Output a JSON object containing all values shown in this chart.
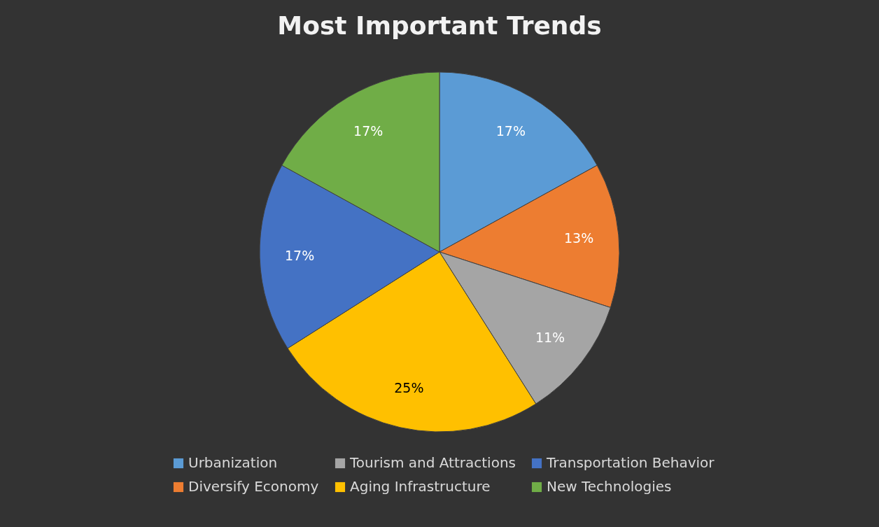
{
  "chart_data": {
    "type": "pie",
    "title": "Most Important Trends",
    "categories": [
      "Urbanization",
      "Diversify Economy",
      "Tourism and Attractions",
      "Aging Infrastructure",
      "Transportation Behavior",
      "New Technologies"
    ],
    "values": [
      17,
      13,
      11,
      25,
      17,
      17
    ],
    "colors": [
      "#5b9bd5",
      "#ed7d31",
      "#a5a5a5",
      "#ffc000",
      "#4472c4",
      "#70ad47"
    ],
    "value_labels": [
      "17%",
      "13%",
      "11%",
      "25%",
      "17%",
      "17%"
    ],
    "legend": "bottom"
  }
}
